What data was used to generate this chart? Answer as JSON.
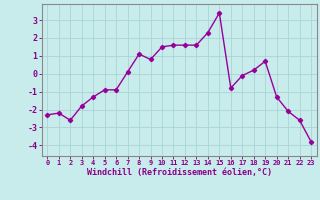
{
  "x": [
    0,
    1,
    2,
    3,
    4,
    5,
    6,
    7,
    8,
    9,
    10,
    11,
    12,
    13,
    14,
    15,
    16,
    17,
    18,
    19,
    20,
    21,
    22,
    23
  ],
  "y": [
    -2.3,
    -2.2,
    -2.6,
    -1.8,
    -1.3,
    -0.9,
    -0.9,
    0.1,
    1.1,
    0.8,
    1.5,
    1.6,
    1.6,
    1.6,
    2.3,
    3.4,
    -0.8,
    -0.1,
    0.2,
    0.7,
    -1.3,
    -2.1,
    -2.6,
    -3.8
  ],
  "line_color": "#990099",
  "marker": "D",
  "markersize": 2.2,
  "linewidth": 1.0,
  "bg_color": "#c8ecec",
  "grid_color": "#aad4d4",
  "xlabel": "Windchill (Refroidissement éolien,°C)",
  "xlabel_color": "#880088",
  "tick_color": "#880088",
  "spine_color": "#888888",
  "ylabel_ticks": [
    -4,
    -3,
    -2,
    -1,
    0,
    1,
    2,
    3
  ],
  "xlim": [
    -0.5,
    23.5
  ],
  "ylim": [
    -4.6,
    3.9
  ],
  "xticks": [
    0,
    1,
    2,
    3,
    4,
    5,
    6,
    7,
    8,
    9,
    10,
    11,
    12,
    13,
    14,
    15,
    16,
    17,
    18,
    19,
    20,
    21,
    22,
    23
  ],
  "xtick_fontsize": 5.0,
  "ytick_fontsize": 6.0,
  "xlabel_fontsize": 6.0
}
